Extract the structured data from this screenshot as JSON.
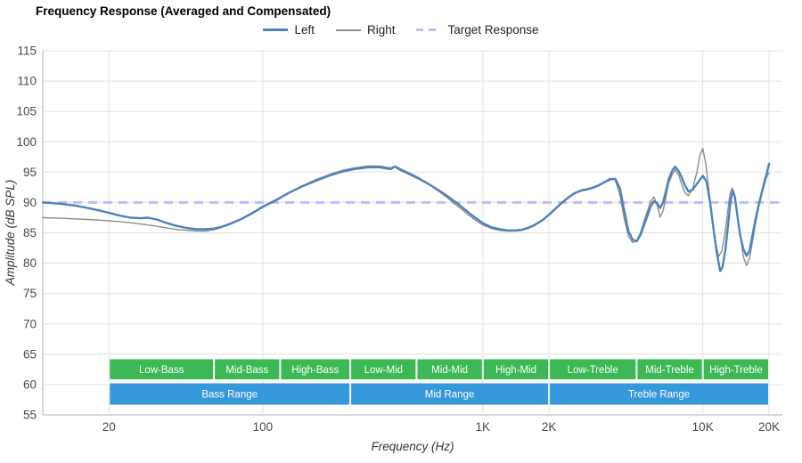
{
  "title": "Frequency Response (Averaged and Compensated)",
  "legend": [
    {
      "label": "Left",
      "color": "#4f81bd",
      "style": "solid",
      "thickness": 3
    },
    {
      "label": "Right",
      "color": "#8c8c8c",
      "style": "solid",
      "thickness": 2
    },
    {
      "label": "Target Response",
      "color": "#bdbff2",
      "style": "dashed",
      "thickness": 3
    }
  ],
  "axes": {
    "y_title": "Amplitude (dB SPL)",
    "x_title": "Frequency (Hz)"
  },
  "chart_data": {
    "type": "line",
    "title": "Frequency Response (Averaged and Compensated)",
    "xlabel": "Frequency (Hz)",
    "ylabel": "Amplitude (dB SPL)",
    "x_scale": "log",
    "xlim": [
      10,
      23000
    ],
    "ylim": [
      55,
      115
    ],
    "grid": true,
    "legend_position": "top-center",
    "y_ticks": [
      55,
      60,
      65,
      70,
      75,
      80,
      85,
      90,
      95,
      100,
      105,
      110,
      115
    ],
    "x_ticks": [
      {
        "f": 20,
        "label": "20"
      },
      {
        "f": 100,
        "label": "100"
      },
      {
        "f": 1000,
        "label": "1K"
      },
      {
        "f": 2000,
        "label": "2K"
      },
      {
        "f": 10000,
        "label": "10K"
      },
      {
        "f": 20000,
        "label": "20K"
      }
    ],
    "target": {
      "name": "Target Response",
      "db": 90,
      "color": "#bdbff2"
    },
    "series": [
      {
        "name": "Left",
        "color": "#4f81bd",
        "width": 2.4,
        "points": [
          [
            10,
            90.0
          ],
          [
            12,
            89.8
          ],
          [
            14,
            89.5
          ],
          [
            16,
            89.1
          ],
          [
            18,
            88.7
          ],
          [
            20,
            88.3
          ],
          [
            22,
            87.9
          ],
          [
            25,
            87.5
          ],
          [
            28,
            87.4
          ],
          [
            30,
            87.5
          ],
          [
            33,
            87.2
          ],
          [
            36,
            86.7
          ],
          [
            40,
            86.2
          ],
          [
            45,
            85.8
          ],
          [
            50,
            85.6
          ],
          [
            55,
            85.6
          ],
          [
            60,
            85.7
          ],
          [
            65,
            86.0
          ],
          [
            70,
            86.4
          ],
          [
            80,
            87.3
          ],
          [
            90,
            88.3
          ],
          [
            100,
            89.3
          ],
          [
            115,
            90.4
          ],
          [
            130,
            91.5
          ],
          [
            150,
            92.6
          ],
          [
            175,
            93.6
          ],
          [
            200,
            94.4
          ],
          [
            230,
            95.1
          ],
          [
            260,
            95.5
          ],
          [
            300,
            95.8
          ],
          [
            340,
            95.8
          ],
          [
            380,
            95.5
          ],
          [
            400,
            95.9
          ],
          [
            420,
            95.4
          ],
          [
            450,
            94.9
          ],
          [
            500,
            94.1
          ],
          [
            550,
            93.3
          ],
          [
            600,
            92.5
          ],
          [
            650,
            91.7
          ],
          [
            700,
            90.9
          ],
          [
            750,
            90.1
          ],
          [
            800,
            89.3
          ],
          [
            850,
            88.5
          ],
          [
            900,
            87.8
          ],
          [
            950,
            87.2
          ],
          [
            1000,
            86.6
          ],
          [
            1100,
            85.9
          ],
          [
            1200,
            85.6
          ],
          [
            1300,
            85.4
          ],
          [
            1400,
            85.4
          ],
          [
            1500,
            85.5
          ],
          [
            1600,
            85.8
          ],
          [
            1700,
            86.2
          ],
          [
            1850,
            87.0
          ],
          [
            2000,
            88.0
          ],
          [
            2200,
            89.4
          ],
          [
            2400,
            90.6
          ],
          [
            2600,
            91.5
          ],
          [
            2800,
            92.0
          ],
          [
            3000,
            92.2
          ],
          [
            3200,
            92.5
          ],
          [
            3400,
            92.9
          ],
          [
            3600,
            93.4
          ],
          [
            3800,
            93.8
          ],
          [
            4000,
            93.9
          ],
          [
            4200,
            92.3
          ],
          [
            4400,
            88.5
          ],
          [
            4600,
            85.2
          ],
          [
            4800,
            83.9
          ],
          [
            5000,
            83.6
          ],
          [
            5200,
            84.6
          ],
          [
            5500,
            87.0
          ],
          [
            5800,
            89.4
          ],
          [
            6000,
            90.2
          ],
          [
            6200,
            89.9
          ],
          [
            6400,
            89.1
          ],
          [
            6600,
            90.0
          ],
          [
            6800,
            91.9
          ],
          [
            7000,
            93.8
          ],
          [
            7300,
            95.4
          ],
          [
            7500,
            95.9
          ],
          [
            7800,
            95.1
          ],
          [
            8000,
            94.2
          ],
          [
            8300,
            92.8
          ],
          [
            8600,
            91.8
          ],
          [
            9000,
            92.1
          ],
          [
            9500,
            93.3
          ],
          [
            10000,
            94.4
          ],
          [
            10400,
            93.4
          ],
          [
            10800,
            90.0
          ],
          [
            11200,
            85.5
          ],
          [
            11600,
            81.5
          ],
          [
            12000,
            78.7
          ],
          [
            12300,
            79.4
          ],
          [
            12700,
            82.5
          ],
          [
            13000,
            86.0
          ],
          [
            13400,
            90.5
          ],
          [
            13700,
            92.0
          ],
          [
            14000,
            90.8
          ],
          [
            14400,
            87.5
          ],
          [
            14800,
            84.5
          ],
          [
            15300,
            82.3
          ],
          [
            15800,
            81.2
          ],
          [
            16300,
            82.0
          ],
          [
            16800,
            84.5
          ],
          [
            17300,
            87.0
          ],
          [
            18000,
            89.8
          ],
          [
            19000,
            93.2
          ],
          [
            19600,
            95.0
          ],
          [
            20000,
            96.4
          ]
        ]
      },
      {
        "name": "Right",
        "color": "#8c8c8c",
        "width": 1.4,
        "points": [
          [
            10,
            87.5
          ],
          [
            12,
            87.4
          ],
          [
            14,
            87.3
          ],
          [
            16,
            87.2
          ],
          [
            18,
            87.1
          ],
          [
            20,
            87.0
          ],
          [
            23,
            86.8
          ],
          [
            26,
            86.6
          ],
          [
            30,
            86.3
          ],
          [
            34,
            86.0
          ],
          [
            38,
            85.7
          ],
          [
            42,
            85.5
          ],
          [
            46,
            85.4
          ],
          [
            50,
            85.3
          ],
          [
            55,
            85.3
          ],
          [
            60,
            85.5
          ],
          [
            65,
            85.9
          ],
          [
            70,
            86.3
          ],
          [
            80,
            87.2
          ],
          [
            90,
            88.2
          ],
          [
            100,
            89.2
          ],
          [
            115,
            90.3
          ],
          [
            130,
            91.5
          ],
          [
            150,
            92.7
          ],
          [
            175,
            93.8
          ],
          [
            200,
            94.6
          ],
          [
            230,
            95.3
          ],
          [
            260,
            95.7
          ],
          [
            300,
            96.0
          ],
          [
            340,
            96.0
          ],
          [
            380,
            95.7
          ],
          [
            400,
            96.0
          ],
          [
            420,
            95.6
          ],
          [
            450,
            95.1
          ],
          [
            500,
            94.3
          ],
          [
            550,
            93.4
          ],
          [
            600,
            92.4
          ],
          [
            650,
            91.5
          ],
          [
            700,
            90.6
          ],
          [
            750,
            89.7
          ],
          [
            800,
            88.9
          ],
          [
            850,
            88.1
          ],
          [
            900,
            87.4
          ],
          [
            950,
            86.8
          ],
          [
            1000,
            86.3
          ],
          [
            1100,
            85.7
          ],
          [
            1200,
            85.4
          ],
          [
            1300,
            85.3
          ],
          [
            1400,
            85.3
          ],
          [
            1500,
            85.4
          ],
          [
            1600,
            85.7
          ],
          [
            1700,
            86.1
          ],
          [
            1850,
            86.9
          ],
          [
            2000,
            87.9
          ],
          [
            2200,
            89.3
          ],
          [
            2400,
            90.5
          ],
          [
            2600,
            91.4
          ],
          [
            2800,
            91.9
          ],
          [
            3000,
            92.1
          ],
          [
            3200,
            92.4
          ],
          [
            3400,
            93.0
          ],
          [
            3600,
            93.5
          ],
          [
            3800,
            94.0
          ],
          [
            4000,
            93.7
          ],
          [
            4200,
            91.2
          ],
          [
            4400,
            87.2
          ],
          [
            4600,
            84.4
          ],
          [
            4800,
            83.4
          ],
          [
            5000,
            83.7
          ],
          [
            5200,
            85.0
          ],
          [
            5500,
            87.8
          ],
          [
            5800,
            90.2
          ],
          [
            6000,
            90.9
          ],
          [
            6200,
            89.6
          ],
          [
            6400,
            87.6
          ],
          [
            6600,
            88.6
          ],
          [
            6800,
            90.9
          ],
          [
            7000,
            93.2
          ],
          [
            7300,
            94.8
          ],
          [
            7500,
            95.4
          ],
          [
            7800,
            94.4
          ],
          [
            8000,
            93.1
          ],
          [
            8300,
            91.6
          ],
          [
            8600,
            91.1
          ],
          [
            9000,
            92.4
          ],
          [
            9400,
            95.0
          ],
          [
            9700,
            97.8
          ],
          [
            10000,
            98.9
          ],
          [
            10300,
            96.5
          ],
          [
            10700,
            91.5
          ],
          [
            11000,
            87.5
          ],
          [
            11400,
            83.5
          ],
          [
            11800,
            81.1
          ],
          [
            12200,
            82.0
          ],
          [
            12600,
            84.8
          ],
          [
            13000,
            88.8
          ],
          [
            13300,
            91.5
          ],
          [
            13600,
            92.4
          ],
          [
            13900,
            91.2
          ],
          [
            14300,
            88.2
          ],
          [
            14800,
            84.5
          ],
          [
            15300,
            81.0
          ],
          [
            15800,
            79.6
          ],
          [
            16300,
            80.8
          ],
          [
            16800,
            83.5
          ],
          [
            17300,
            86.2
          ],
          [
            18000,
            89.5
          ],
          [
            19000,
            92.8
          ],
          [
            19500,
            94.2
          ],
          [
            20000,
            94.9
          ]
        ]
      }
    ],
    "bands": {
      "sub": {
        "color": "#3cb854",
        "items": [
          {
            "label": "Low-Bass",
            "from": 20,
            "to": 60
          },
          {
            "label": "Mid-Bass",
            "from": 60,
            "to": 120
          },
          {
            "label": "High-Bass",
            "from": 120,
            "to": 250
          },
          {
            "label": "Low-Mid",
            "from": 250,
            "to": 500
          },
          {
            "label": "Mid-Mid",
            "from": 500,
            "to": 1000
          },
          {
            "label": "High-Mid",
            "from": 1000,
            "to": 2000
          },
          {
            "label": "Low-Treble",
            "from": 2000,
            "to": 5000
          },
          {
            "label": "Mid-Treble",
            "from": 5000,
            "to": 10000
          },
          {
            "label": "High-Treble",
            "from": 10000,
            "to": 20000
          }
        ]
      },
      "main": {
        "color": "#3498db",
        "items": [
          {
            "label": "Bass Range",
            "from": 20,
            "to": 250
          },
          {
            "label": "Mid Range",
            "from": 250,
            "to": 2000
          },
          {
            "label": "Treble Range",
            "from": 2000,
            "to": 20000
          }
        ]
      }
    },
    "colors": {
      "grid": "#e0e0e0",
      "axis": "#b0b0b0",
      "tick_text": "#4a4a4a",
      "band_text": "#ffffff"
    }
  }
}
